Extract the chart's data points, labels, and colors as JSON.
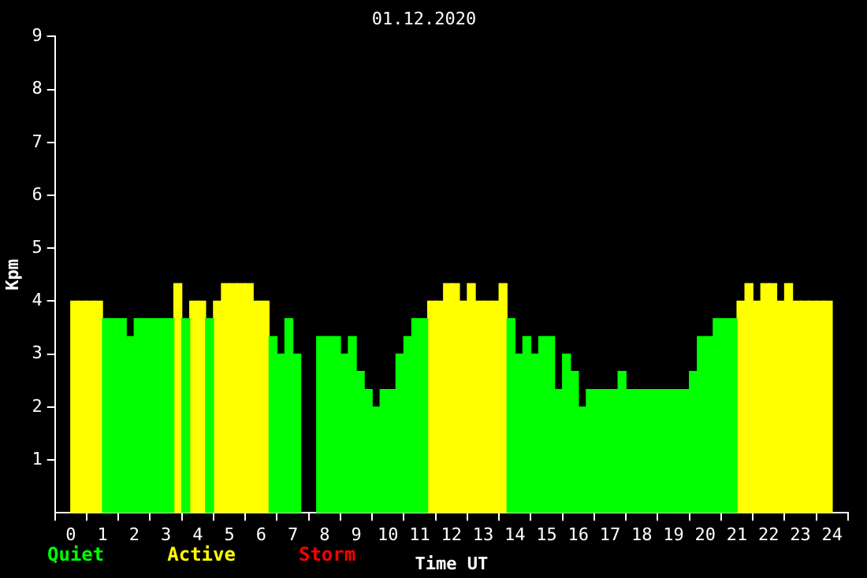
{
  "chart_data": {
    "type": "bar",
    "title": "01.12.2020",
    "xlabel": "Time UT",
    "ylabel": "Kpm",
    "x": [
      0.125,
      0.375,
      0.625,
      0.875,
      1.125,
      1.375,
      1.625,
      1.875,
      2.125,
      2.375,
      2.625,
      2.875,
      3.125,
      3.375,
      3.625,
      3.875,
      4.125,
      4.375,
      4.625,
      4.875,
      5.125,
      5.375,
      5.625,
      5.875,
      6.125,
      6.375,
      6.625,
      6.875,
      7.125,
      7.375,
      7.625,
      7.875,
      8.125,
      8.375,
      8.625,
      8.875,
      9.125,
      9.375,
      9.625,
      9.875,
      10.125,
      10.375,
      10.625,
      10.875,
      11.125,
      11.375,
      11.625,
      11.875,
      12.125,
      12.375,
      12.625,
      12.875,
      13.125,
      13.375,
      13.625,
      13.875,
      14.125,
      14.375,
      14.625,
      14.875,
      15.125,
      15.375,
      15.625,
      15.875,
      16.125,
      16.375,
      16.625,
      16.875,
      17.125,
      17.375,
      17.625,
      17.875,
      18.125,
      18.375,
      18.625,
      18.875,
      19.125,
      19.375,
      19.625,
      19.875,
      20.125,
      20.375,
      20.625,
      20.875,
      21.125,
      21.375,
      21.625,
      21.875,
      22.125,
      22.375,
      22.625,
      22.875,
      23.125,
      23.375,
      23.625,
      23.875
    ],
    "series": [
      {
        "name": "Quiet",
        "color": "#00ff00",
        "values": [
          null,
          null,
          null,
          null,
          3.67,
          3.67,
          3.67,
          3.33,
          3.67,
          3.67,
          3.67,
          3.67,
          3.67,
          null,
          3.67,
          null,
          null,
          3.67,
          null,
          null,
          null,
          null,
          null,
          null,
          null,
          3.33,
          3,
          3.67,
          3,
          null,
          null,
          3.33,
          3.33,
          3.33,
          3,
          3.33,
          2.67,
          2.33,
          2,
          2.33,
          2.33,
          3,
          3.33,
          3.67,
          3.67,
          null,
          null,
          null,
          null,
          null,
          null,
          null,
          null,
          null,
          null,
          3.67,
          3,
          3.33,
          3,
          3.33,
          3.33,
          2.33,
          3,
          2.67,
          2,
          2.33,
          2.33,
          2.33,
          2.33,
          2.67,
          2.33,
          2.33,
          2.33,
          2.33,
          2.33,
          2.33,
          2.33,
          2.33,
          2.67,
          3.33,
          3.33,
          3.67,
          3.67,
          3.67,
          null,
          null,
          null,
          null,
          null,
          null,
          null,
          null,
          null,
          null,
          null,
          null
        ]
      },
      {
        "name": "Active",
        "color": "#ffff00",
        "values": [
          4,
          4,
          4,
          4,
          null,
          null,
          null,
          null,
          null,
          null,
          null,
          null,
          null,
          4.33,
          null,
          4,
          4,
          null,
          4,
          4.33,
          4.33,
          4.33,
          4.33,
          4,
          4,
          null,
          null,
          null,
          null,
          null,
          null,
          null,
          null,
          null,
          null,
          null,
          null,
          null,
          null,
          null,
          null,
          null,
          null,
          null,
          null,
          4,
          4,
          4.33,
          4.33,
          4,
          4.33,
          4,
          4,
          4,
          4.33,
          null,
          null,
          null,
          null,
          null,
          null,
          null,
          null,
          null,
          null,
          null,
          null,
          null,
          null,
          null,
          null,
          null,
          null,
          null,
          null,
          null,
          null,
          null,
          null,
          null,
          null,
          null,
          null,
          null,
          4,
          4.33,
          4,
          4.33,
          4.33,
          4,
          4.33,
          4,
          4,
          4,
          4,
          4
        ]
      },
      {
        "name": "Storm",
        "color": "#ff0000",
        "values": [
          null,
          null,
          null,
          null,
          null,
          null,
          null,
          null,
          null,
          null,
          null,
          null,
          null,
          null,
          null,
          null,
          null,
          null,
          null,
          null,
          null,
          null,
          null,
          null,
          null,
          null,
          null,
          null,
          null,
          null,
          null,
          null,
          null,
          null,
          null,
          null,
          null,
          null,
          null,
          null,
          null,
          null,
          null,
          null,
          null,
          null,
          null,
          null,
          null,
          null,
          null,
          null,
          null,
          null,
          null,
          null,
          null,
          null,
          null,
          null,
          null,
          null,
          null,
          null,
          null,
          null,
          null,
          null,
          null,
          null,
          null,
          null,
          null,
          null,
          null,
          null,
          null,
          null,
          null,
          null,
          null,
          null,
          null,
          null,
          null,
          null,
          null,
          null,
          null,
          null,
          null,
          null,
          null,
          null,
          null,
          null
        ]
      }
    ],
    "xlim": [
      0,
      24
    ],
    "xticks": [
      0,
      1,
      2,
      3,
      4,
      5,
      6,
      7,
      8,
      9,
      10,
      11,
      12,
      13,
      14,
      15,
      16,
      17,
      18,
      19,
      20,
      21,
      22,
      23,
      24
    ],
    "ylim": [
      0,
      9
    ],
    "yticks": [
      1,
      2,
      3,
      4,
      5,
      6,
      7,
      8,
      9
    ],
    "grid": false,
    "legend": "bottom left"
  }
}
